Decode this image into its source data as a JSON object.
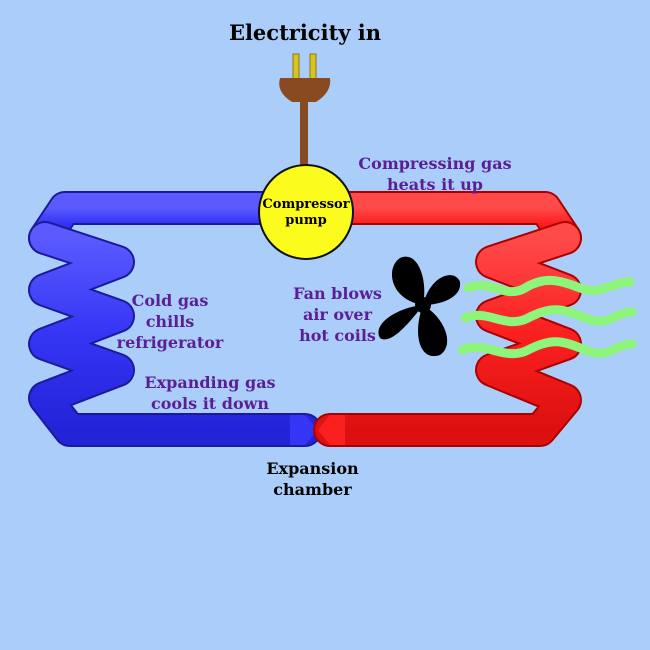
{
  "title": "Electricity in",
  "compressor": [
    "Compressor",
    "pump"
  ],
  "labels": {
    "compressing": [
      "Compressing gas",
      "heats it up"
    ],
    "cold": [
      "Cold gas",
      "chills",
      "refrigerator"
    ],
    "fan": [
      "Fan blows",
      "air over",
      "hot coils"
    ],
    "expanding": [
      "Expanding gas",
      "cools it down"
    ],
    "expansion": [
      "Expansion",
      "chamber"
    ]
  },
  "colors": {
    "background": "#abcdf9",
    "cold_pipe": "#3535f5",
    "hot_pipe": "#fb2020",
    "compressor": "#fbfb1e",
    "plug": "#8a4a21",
    "prongs": "#d7c423",
    "air": "#8ef57b",
    "text_purple": "#5a1f96"
  },
  "icons": [
    "plug-icon",
    "fan-icon",
    "air-wave-icon"
  ]
}
